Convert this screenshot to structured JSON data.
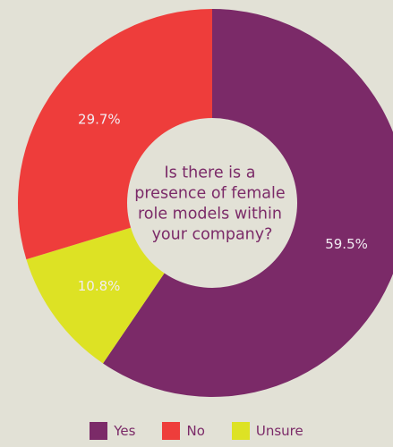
{
  "chart_data": {
    "type": "pie",
    "donut": true,
    "center_text": [
      "Is there is a",
      "presence of female",
      "role models within",
      "your company?"
    ],
    "slices": [
      {
        "name": "Yes",
        "value": 59.5,
        "label": "59.5%",
        "color": "#7b2a68"
      },
      {
        "name": "Unsure",
        "value": 10.8,
        "label": "10.8%",
        "color": "#dde224"
      },
      {
        "name": "No",
        "value": 29.7,
        "label": "29.7%",
        "color": "#ee3d3b"
      }
    ],
    "legend": {
      "placement": "bottom",
      "entries": [
        {
          "name": "Yes",
          "color": "#7b2a68"
        },
        {
          "name": "No",
          "color": "#ee3d3b"
        },
        {
          "name": "Unsure",
          "color": "#dde224"
        }
      ]
    }
  }
}
